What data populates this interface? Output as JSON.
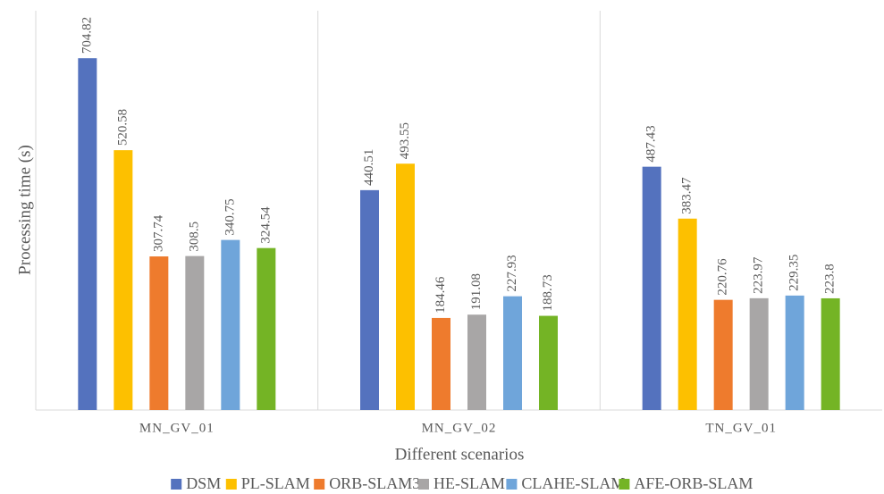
{
  "chart_data": {
    "type": "bar",
    "x_label": "Different scenarios",
    "y_label": "Processing time (s)",
    "categories": [
      "MN_GV_01",
      "MN_GV_02",
      "TN_GV_01"
    ],
    "series": [
      {
        "name": "DSM",
        "color": "#5472be",
        "values": [
          704.82,
          440.51,
          487.43
        ]
      },
      {
        "name": "PL-SLAM",
        "color": "#fdc000",
        "values": [
          520.58,
          493.55,
          383.47
        ]
      },
      {
        "name": "ORB-SLAM3",
        "color": "#ee7b2d",
        "values": [
          307.74,
          184.46,
          220.76
        ]
      },
      {
        "name": "HE-SLAM",
        "color": "#a8a6a6",
        "values": [
          308.5,
          191.08,
          223.97
        ]
      },
      {
        "name": "CLAHE-SLAM",
        "color": "#6fa5da",
        "values": [
          340.75,
          227.93,
          229.35
        ]
      },
      {
        "name": "AFE-ORB-SLAM",
        "color": "#74b425",
        "values": [
          324.54,
          188.73,
          223.8
        ]
      }
    ],
    "ylim": [
      0,
      800
    ],
    "legend": "bottom"
  }
}
